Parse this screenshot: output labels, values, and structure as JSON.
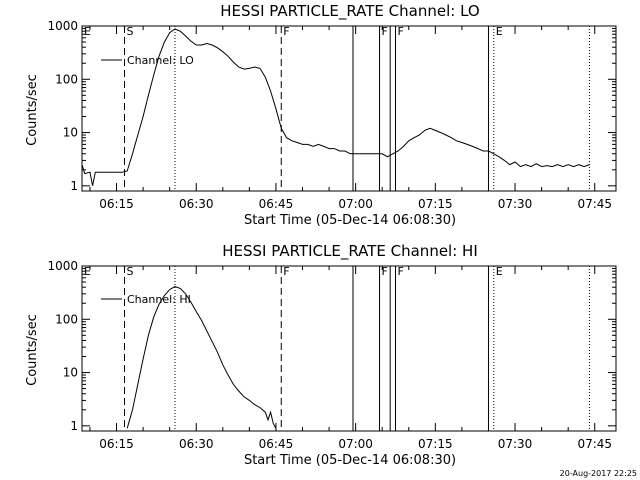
{
  "chart_data": [
    {
      "type": "line",
      "title": "HESSI PARTICLE_RATE Channel: LO",
      "xlabel": "Start Time (05-Dec-14 06:08:30)",
      "ylabel": "Counts/sec",
      "yscale": "log",
      "xlim": [
        "06:08:30",
        "07:49:00"
      ],
      "ylim": [
        0.8,
        1000
      ],
      "x_ticks": [
        "06:15",
        "06:30",
        "06:45",
        "07:00",
        "07:15",
        "07:30",
        "07:45"
      ],
      "y_ticks": [
        "1",
        "10",
        "100",
        "1000"
      ],
      "legend": "top-left",
      "series": [
        {
          "name": "Channel: LO",
          "points": [
            [
              "06:08:30",
              2.5
            ],
            [
              "06:09:00",
              1.7
            ],
            [
              "06:10:00",
              1.8
            ],
            [
              "06:10:30",
              1.0
            ],
            [
              "06:11:00",
              1.8
            ],
            [
              "06:12:00",
              1.8
            ],
            [
              "06:14:00",
              1.8
            ],
            [
              "06:16:00",
              1.8
            ],
            [
              "06:17:00",
              1.9
            ],
            [
              "06:18:00",
              4
            ],
            [
              "06:19:00",
              9
            ],
            [
              "06:20:00",
              20
            ],
            [
              "06:21:00",
              50
            ],
            [
              "06:22:00",
              120
            ],
            [
              "06:23:00",
              270
            ],
            [
              "06:24:00",
              500
            ],
            [
              "06:25:00",
              750
            ],
            [
              "06:26:00",
              880
            ],
            [
              "06:27:00",
              800
            ],
            [
              "06:28:00",
              650
            ],
            [
              "06:29:00",
              520
            ],
            [
              "06:30:00",
              440
            ],
            [
              "06:31:00",
              440
            ],
            [
              "06:32:00",
              470
            ],
            [
              "06:33:00",
              440
            ],
            [
              "06:34:00",
              390
            ],
            [
              "06:35:00",
              330
            ],
            [
              "06:36:00",
              270
            ],
            [
              "06:37:00",
              210
            ],
            [
              "06:38:00",
              170
            ],
            [
              "06:39:00",
              155
            ],
            [
              "06:40:00",
              160
            ],
            [
              "06:41:00",
              170
            ],
            [
              "06:42:00",
              160
            ],
            [
              "06:43:00",
              110
            ],
            [
              "06:44:00",
              60
            ],
            [
              "06:45:00",
              28
            ],
            [
              "06:46:00",
              12
            ],
            [
              "06:47:00",
              8
            ],
            [
              "06:48:00",
              7
            ],
            [
              "06:49:00",
              6.5
            ],
            [
              "06:50:00",
              6
            ],
            [
              "06:51:00",
              6
            ],
            [
              "06:52:00",
              5.5
            ],
            [
              "06:53:00",
              6
            ],
            [
              "06:54:00",
              5.5
            ],
            [
              "06:55:00",
              5
            ],
            [
              "06:56:00",
              5
            ],
            [
              "06:57:00",
              4.5
            ],
            [
              "06:58:00",
              4.5
            ],
            [
              "06:59:00",
              4
            ],
            [
              "07:00:00",
              4
            ],
            [
              "07:01:00",
              4
            ],
            [
              "07:02:00",
              4
            ],
            [
              "07:03:00",
              4
            ],
            [
              "07:04:00",
              4
            ],
            [
              "07:05:00",
              4
            ],
            [
              "07:06:00",
              3.5
            ],
            [
              "07:07:00",
              4
            ],
            [
              "07:08:00",
              4.5
            ],
            [
              "07:09:00",
              5.5
            ],
            [
              "07:10:00",
              7
            ],
            [
              "07:11:00",
              8
            ],
            [
              "07:12:00",
              9
            ],
            [
              "07:13:00",
              11
            ],
            [
              "07:14:00",
              12
            ],
            [
              "07:15:00",
              11
            ],
            [
              "07:16:00",
              10
            ],
            [
              "07:17:00",
              9
            ],
            [
              "07:18:00",
              8
            ],
            [
              "07:19:00",
              7
            ],
            [
              "07:20:00",
              6.5
            ],
            [
              "07:21:00",
              6
            ],
            [
              "07:22:00",
              5.5
            ],
            [
              "07:23:00",
              5
            ],
            [
              "07:24:00",
              4.5
            ],
            [
              "07:25:00",
              4.5
            ],
            [
              "07:26:00",
              4
            ],
            [
              "07:27:00",
              3.5
            ],
            [
              "07:28:00",
              3
            ],
            [
              "07:29:00",
              2.5
            ],
            [
              "07:30:00",
              2.8
            ],
            [
              "07:31:00",
              2.3
            ],
            [
              "07:32:00",
              2.5
            ],
            [
              "07:33:00",
              2.3
            ],
            [
              "07:34:00",
              2.6
            ],
            [
              "07:35:00",
              2.3
            ],
            [
              "07:36:00",
              2.4
            ],
            [
              "07:37:00",
              2.3
            ],
            [
              "07:38:00",
              2.5
            ],
            [
              "07:39:00",
              2.3
            ],
            [
              "07:40:00",
              2.5
            ],
            [
              "07:41:00",
              2.3
            ],
            [
              "07:42:00",
              2.5
            ],
            [
              "07:43:00",
              2.3
            ],
            [
              "07:44:00",
              2.5
            ]
          ]
        }
      ],
      "markers": [
        {
          "label": "E",
          "time": "06:08:30",
          "style": "none"
        },
        {
          "label": "S",
          "time": "06:16:30",
          "style": "dashed"
        },
        {
          "label": "",
          "time": "06:26:00",
          "style": "dotted"
        },
        {
          "label": "F",
          "time": "06:46:00",
          "style": "dashed"
        },
        {
          "label": "",
          "time": "06:59:30",
          "style": "solid"
        },
        {
          "label": "F",
          "time": "07:04:30",
          "style": "solid"
        },
        {
          "label": "",
          "time": "07:06:30",
          "style": "solid"
        },
        {
          "label": "F",
          "time": "07:07:30",
          "style": "solid"
        },
        {
          "label": "",
          "time": "07:25:00",
          "style": "solid"
        },
        {
          "label": "E",
          "time": "07:26:00",
          "style": "dotted"
        },
        {
          "label": "",
          "time": "07:44:00",
          "style": "dotted"
        }
      ]
    },
    {
      "type": "line",
      "title": "HESSI PARTICLE_RATE Channel: HI",
      "xlabel": "Start Time (05-Dec-14 06:08:30)",
      "ylabel": "Counts/sec",
      "yscale": "log",
      "xlim": [
        "06:08:30",
        "07:49:00"
      ],
      "ylim": [
        0.8,
        1000
      ],
      "x_ticks": [
        "06:15",
        "06:30",
        "06:45",
        "07:00",
        "07:15",
        "07:30",
        "07:45"
      ],
      "y_ticks": [
        "1",
        "10",
        "100",
        "1000"
      ],
      "legend": "top-left",
      "series": [
        {
          "name": "Channel: HI",
          "points": [
            [
              "06:17:00",
              0.9
            ],
            [
              "06:18:00",
              2
            ],
            [
              "06:19:00",
              6
            ],
            [
              "06:20:00",
              18
            ],
            [
              "06:21:00",
              50
            ],
            [
              "06:22:00",
              110
            ],
            [
              "06:23:00",
              190
            ],
            [
              "06:24:00",
              280
            ],
            [
              "06:25:00",
              360
            ],
            [
              "06:26:00",
              410
            ],
            [
              "06:27:00",
              380
            ],
            [
              "06:28:00",
              300
            ],
            [
              "06:29:00",
              210
            ],
            [
              "06:30:00",
              140
            ],
            [
              "06:31:00",
              95
            ],
            [
              "06:32:00",
              60
            ],
            [
              "06:33:00",
              38
            ],
            [
              "06:34:00",
              24
            ],
            [
              "06:35:00",
              14
            ],
            [
              "06:36:00",
              9
            ],
            [
              "06:37:00",
              6
            ],
            [
              "06:38:00",
              4.5
            ],
            [
              "06:39:00",
              3.5
            ],
            [
              "06:40:00",
              3
            ],
            [
              "06:41:00",
              2.5
            ],
            [
              "06:42:00",
              2.2
            ],
            [
              "06:43:00",
              1.8
            ],
            [
              "06:43:30",
              1.3
            ],
            [
              "06:44:00",
              1.8
            ],
            [
              "06:44:30",
              1.1
            ],
            [
              "06:45:00",
              0.9
            ]
          ]
        }
      ],
      "markers": [
        {
          "label": "E",
          "time": "06:08:30",
          "style": "none"
        },
        {
          "label": "S",
          "time": "06:16:30",
          "style": "dashed"
        },
        {
          "label": "",
          "time": "06:26:00",
          "style": "dotted"
        },
        {
          "label": "F",
          "time": "06:46:00",
          "style": "dashed"
        },
        {
          "label": "",
          "time": "06:59:30",
          "style": "solid"
        },
        {
          "label": "F",
          "time": "07:04:30",
          "style": "solid"
        },
        {
          "label": "",
          "time": "07:06:30",
          "style": "solid"
        },
        {
          "label": "F",
          "time": "07:07:30",
          "style": "solid"
        },
        {
          "label": "",
          "time": "07:25:00",
          "style": "solid"
        },
        {
          "label": "E",
          "time": "07:26:00",
          "style": "dotted"
        },
        {
          "label": "",
          "time": "07:44:00",
          "style": "dotted"
        }
      ]
    }
  ],
  "footer": {
    "timestamp": "20-Aug-2017 22:25"
  }
}
